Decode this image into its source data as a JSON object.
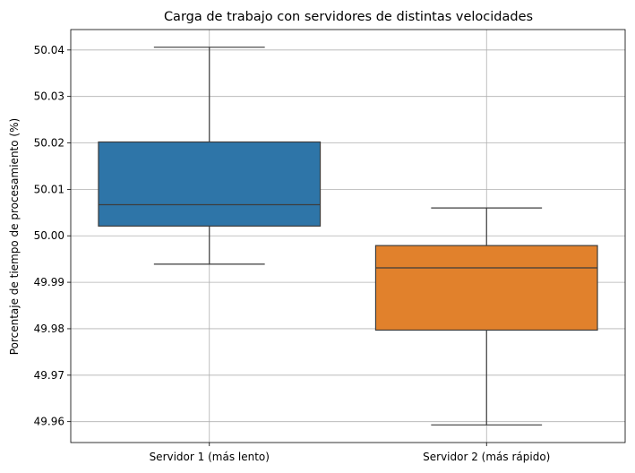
{
  "chart_data": {
    "type": "box",
    "title": "Carga de trabajo con servidores de distintas velocidades",
    "xlabel": "",
    "ylabel": "Porcentaje de tiempo de procesamiento (%)",
    "categories": [
      "Servidor 1 (más lento)",
      "Servidor 2 (más rápido)"
    ],
    "boxes": [
      {
        "whisker_low": 49.9939,
        "q1": 50.0021,
        "median": 50.0067,
        "q3": 50.0202,
        "whisker_high": 50.0406,
        "color": "#2e75a8"
      },
      {
        "whisker_low": 49.9593,
        "q1": 49.9797,
        "median": 49.9931,
        "q3": 49.9979,
        "whisker_high": 50.006,
        "color": "#e1812c"
      }
    ],
    "yticks": [
      "49.96",
      "49.97",
      "49.98",
      "49.99",
      "50.00",
      "50.01",
      "50.02",
      "50.03",
      "50.04"
    ],
    "ylim": [
      49.9555,
      50.0444
    ],
    "grid": true,
    "legend": "none"
  }
}
